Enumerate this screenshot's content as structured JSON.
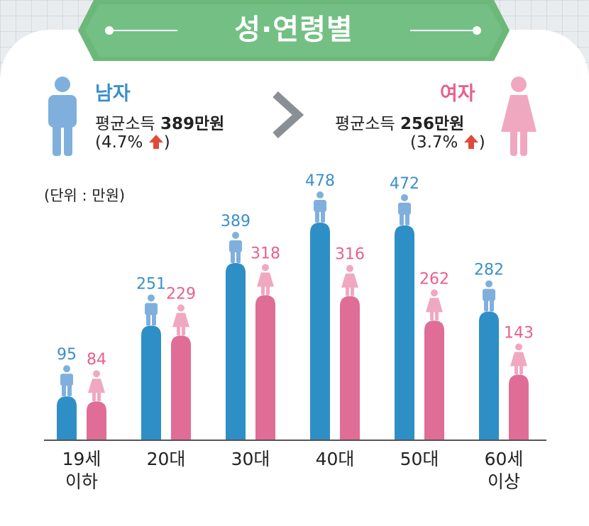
{
  "title": "성·연령별",
  "legend": {
    "male": {
      "title": "남자",
      "avg_label": "평균소득",
      "avg_value": "389만원",
      "change": "(4.7%",
      "change_close": ")"
    },
    "female": {
      "title": "여자",
      "avg_label": "평균소득",
      "avg_value": "256만원",
      "change": "(3.7%",
      "change_close": ")"
    }
  },
  "unit": "(단위 : 만원)",
  "colors": {
    "male_bar": "#2e8fc6",
    "female_bar": "#e06d96",
    "male_label": "#3a8fcc",
    "female_label": "#e8608c",
    "male_icon": "#7fb0dd",
    "female_icon": "#f0a8c0",
    "banner": "#6cb77a",
    "up_arrow": "#e04a3a"
  },
  "chart_data": {
    "type": "bar",
    "categories": [
      [
        "19세",
        "이하"
      ],
      [
        "20대"
      ],
      [
        "30대"
      ],
      [
        "40대"
      ],
      [
        "50대"
      ],
      [
        "60세",
        "이상"
      ]
    ],
    "series": [
      {
        "name": "남자",
        "values": [
          95,
          251,
          389,
          478,
          472,
          282
        ]
      },
      {
        "name": "여자",
        "values": [
          84,
          229,
          318,
          316,
          262,
          143
        ]
      }
    ],
    "ylabel": "",
    "xlabel": ""
  }
}
